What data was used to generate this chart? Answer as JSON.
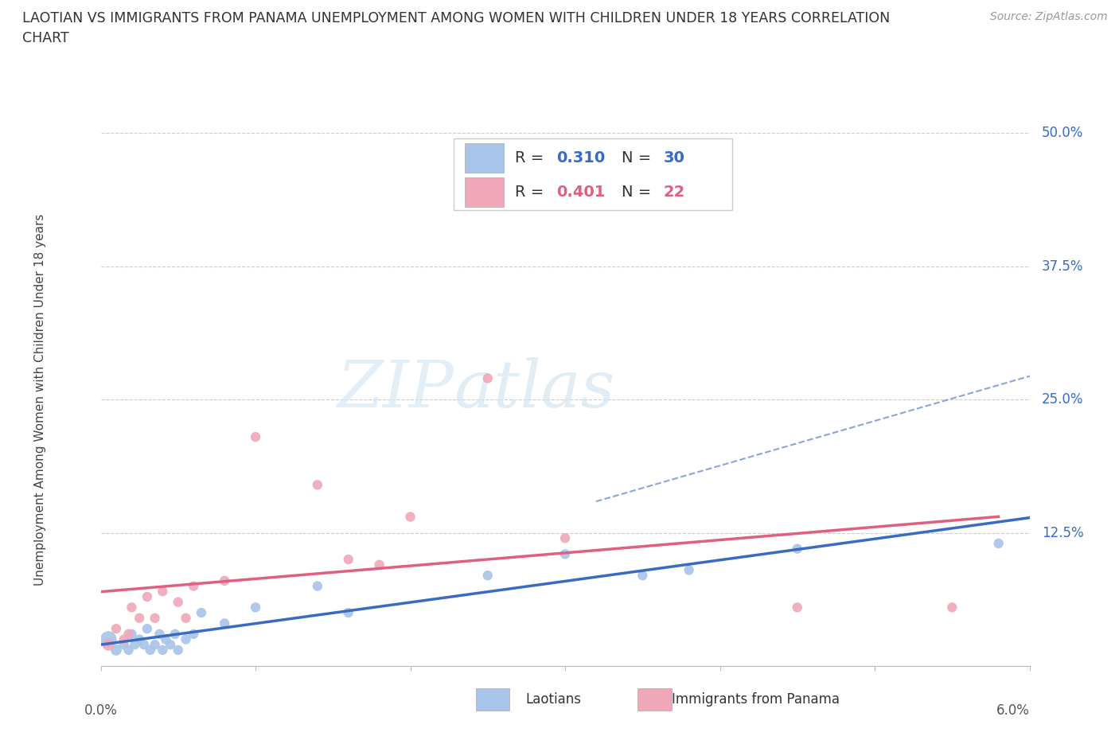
{
  "title_line1": "LAOTIAN VS IMMIGRANTS FROM PANAMA UNEMPLOYMENT AMONG WOMEN WITH CHILDREN UNDER 18 YEARS CORRELATION",
  "title_line2": "CHART",
  "source": "Source: ZipAtlas.com",
  "xlim": [
    0.0,
    6.0
  ],
  "ylim": [
    0.0,
    50.0
  ],
  "ylabel": "Unemployment Among Women with Children Under 18 years",
  "R_laotian": 0.31,
  "N_laotian": 30,
  "R_panama": 0.401,
  "N_panama": 22,
  "color_laotian": "#a8c4e8",
  "color_panama": "#f0a8b8",
  "color_laotian_line": "#3a6bc4",
  "color_panama_line": "#e06080",
  "color_laotian_dark": "#3a6bc4",
  "color_panama_dark": "#e06080",
  "laotian_x": [
    0.05,
    0.1,
    0.15,
    0.18,
    0.2,
    0.22,
    0.25,
    0.28,
    0.3,
    0.32,
    0.35,
    0.38,
    0.4,
    0.42,
    0.45,
    0.48,
    0.5,
    0.55,
    0.6,
    0.65,
    0.8,
    1.0,
    1.4,
    1.6,
    2.5,
    3.0,
    3.5,
    3.8,
    4.5,
    5.8
  ],
  "laotian_y": [
    2.5,
    1.5,
    2.0,
    1.5,
    3.0,
    2.0,
    2.5,
    2.0,
    3.5,
    1.5,
    2.0,
    3.0,
    1.5,
    2.5,
    2.0,
    3.0,
    1.5,
    2.5,
    3.0,
    5.0,
    4.0,
    5.5,
    7.5,
    5.0,
    8.5,
    10.5,
    8.5,
    9.0,
    11.0,
    11.5
  ],
  "laotian_sizes": [
    220,
    100,
    80,
    80,
    80,
    80,
    80,
    80,
    80,
    80,
    80,
    80,
    80,
    80,
    80,
    80,
    80,
    80,
    80,
    80,
    80,
    80,
    80,
    80,
    80,
    80,
    80,
    80,
    80,
    80
  ],
  "panama_x": [
    0.05,
    0.1,
    0.15,
    0.18,
    0.2,
    0.25,
    0.3,
    0.35,
    0.4,
    0.5,
    0.55,
    0.6,
    0.8,
    1.0,
    1.4,
    1.6,
    1.8,
    2.0,
    2.5,
    3.0,
    4.5,
    5.5
  ],
  "panama_y": [
    2.0,
    3.5,
    2.5,
    3.0,
    5.5,
    4.5,
    6.5,
    4.5,
    7.0,
    6.0,
    4.5,
    7.5,
    8.0,
    21.5,
    17.0,
    10.0,
    9.5,
    14.0,
    27.0,
    12.0,
    5.5,
    5.5
  ],
  "panama_sizes": [
    120,
    80,
    80,
    80,
    80,
    80,
    80,
    80,
    80,
    80,
    80,
    80,
    80,
    80,
    80,
    80,
    80,
    80,
    80,
    80,
    80,
    80
  ],
  "watermark_zip": "ZIP",
  "watermark_atlas": "atlas",
  "grid_color": "#cccccc",
  "background_color": "#ffffff",
  "ytick_values": [
    0.0,
    12.5,
    25.0,
    37.5,
    50.0
  ],
  "ytick_labels": [
    "",
    "12.5%",
    "25.0%",
    "37.5%",
    "50.0%"
  ]
}
